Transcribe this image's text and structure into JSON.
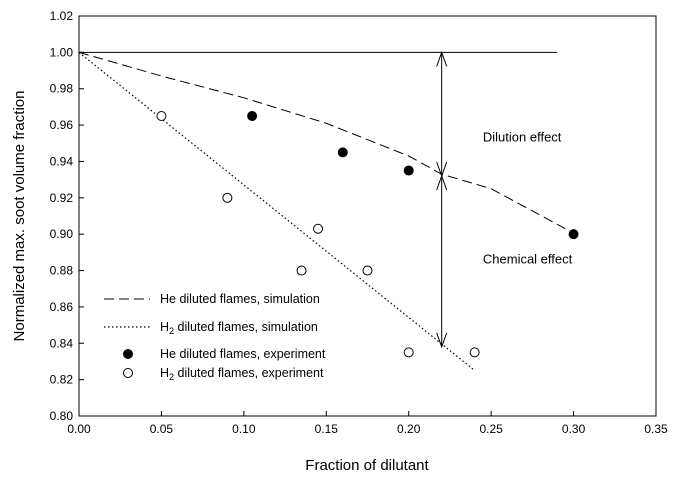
{
  "chart_data": {
    "type": "scatter",
    "xlabel": "Fraction of dilutant",
    "ylabel": "Normalized max. soot volume fraction",
    "xlim": [
      0,
      0.35
    ],
    "ylim": [
      0.8,
      1.02
    ],
    "x_ticks": [
      "0.00",
      "0.05",
      "0.10",
      "0.15",
      "0.20",
      "0.25",
      "0.30",
      "0.35"
    ],
    "y_ticks": [
      "0.80",
      "0.82",
      "0.84",
      "0.86",
      "0.88",
      "0.90",
      "0.92",
      "0.94",
      "0.96",
      "0.98",
      "1.00",
      "1.02"
    ],
    "grid": false,
    "legend_position": "bottom-left",
    "series": [
      {
        "name": "He diluted flames, simulation",
        "kind": "line",
        "style": "dashed",
        "points": [
          [
            0.0,
            1.0
          ],
          [
            0.05,
            0.987
          ],
          [
            0.1,
            0.975
          ],
          [
            0.15,
            0.961
          ],
          [
            0.2,
            0.943
          ],
          [
            0.22,
            0.933
          ],
          [
            0.25,
            0.925
          ],
          [
            0.295,
            0.903
          ]
        ]
      },
      {
        "name": "H2 diluted flames, simulation",
        "name_main": "H",
        "name_sub": "2",
        "name_rest": " diluted flames, simulation",
        "kind": "line",
        "style": "dotted",
        "points": [
          [
            0.0,
            1.0
          ],
          [
            0.24,
            0.825
          ]
        ]
      },
      {
        "name": "He diluted flames, experiment",
        "kind": "scatter",
        "marker": "filled-circle",
        "points": [
          [
            0.105,
            0.965
          ],
          [
            0.16,
            0.945
          ],
          [
            0.2,
            0.935
          ],
          [
            0.3,
            0.9
          ]
        ]
      },
      {
        "name": "H2 diluted flames, experiment",
        "name_main": "H",
        "name_sub": "2",
        "name_rest": " diluted flames, experiment",
        "kind": "scatter",
        "marker": "open-circle",
        "points": [
          [
            0.05,
            0.965
          ],
          [
            0.09,
            0.92
          ],
          [
            0.135,
            0.88
          ],
          [
            0.145,
            0.903
          ],
          [
            0.175,
            0.88
          ],
          [
            0.2,
            0.835
          ],
          [
            0.24,
            0.835
          ]
        ]
      }
    ],
    "reference_line": {
      "y": 1.0,
      "x_start": 0.0,
      "x_end": 0.29
    },
    "annotations": {
      "dilution": {
        "text": "Dilution effect",
        "x": 0.22,
        "y_top": 1.0,
        "y_bottom": 0.932,
        "label_x": 0.245,
        "label_y": 0.951
      },
      "chemical": {
        "text": "Chemical effect",
        "x": 0.22,
        "y_top": 0.932,
        "y_bottom": 0.838,
        "label_x": 0.245,
        "label_y": 0.884
      }
    }
  }
}
